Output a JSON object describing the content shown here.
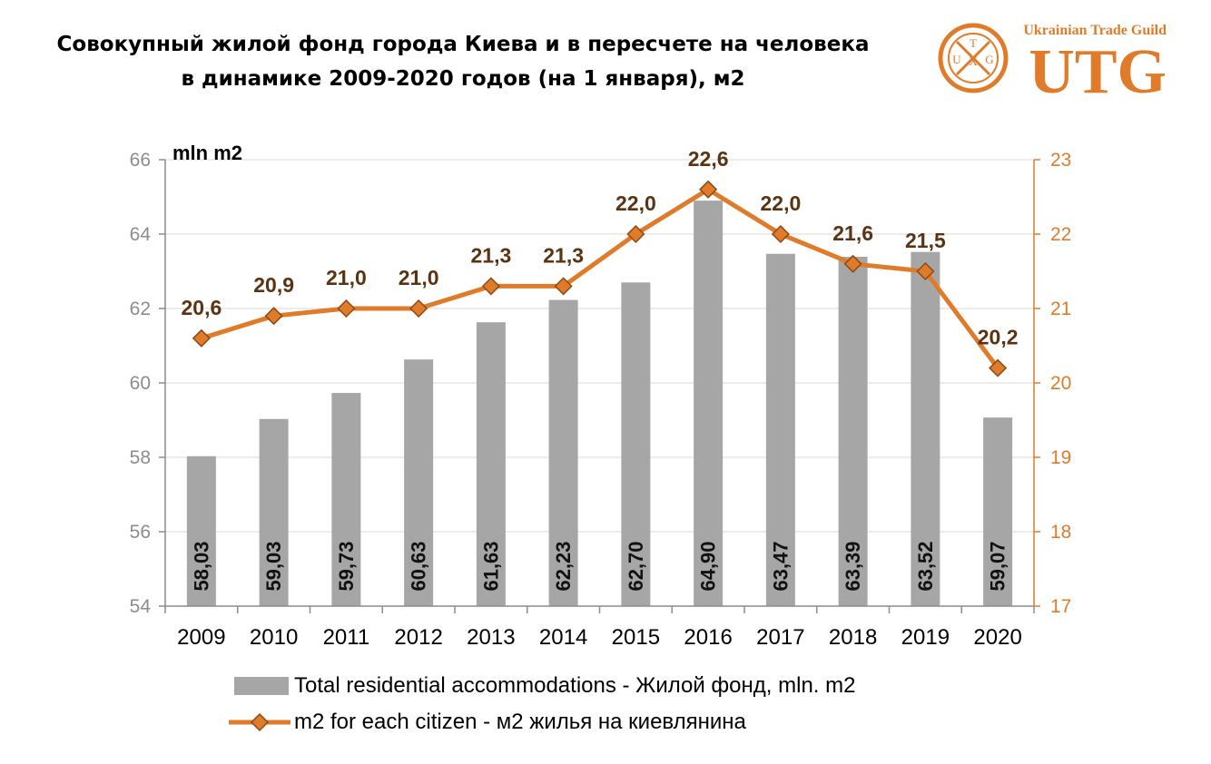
{
  "title": {
    "line1": "Совокупный жилой фонд города Киева и в пересчете на человека",
    "line2": "в динамике 2009-2020 годов (на 1 января), м2"
  },
  "logo": {
    "text_top": "Ukrainian Trade Guild",
    "text_main": "UTG",
    "seal_letters": [
      "U",
      "T",
      "G",
      "X"
    ],
    "color": "#e07b2a"
  },
  "chart_data": {
    "type": "bar",
    "unit_label": "mln m2",
    "categories": [
      "2009",
      "2010",
      "2011",
      "2012",
      "2013",
      "2014",
      "2015",
      "2016",
      "2017",
      "2018",
      "2019",
      "2020"
    ],
    "series": [
      {
        "name": "Total residential accommodations - Жилой фонд, mln. m2",
        "type": "bar",
        "axis": "left",
        "color": "#a6a6a6",
        "values": [
          58.03,
          59.03,
          59.73,
          60.63,
          61.63,
          62.23,
          62.7,
          64.9,
          63.47,
          63.39,
          63.52,
          59.07
        ],
        "labels": [
          "58,03",
          "59,03",
          "59,73",
          "60,63",
          "61,63",
          "62,23",
          "62,70",
          "64,90",
          "63,47",
          "63,39",
          "63,52",
          "59,07"
        ]
      },
      {
        "name": "m2 for each citizen - м2 жилья на киевлянина",
        "type": "line",
        "axis": "right",
        "color": "#e07b2a",
        "values": [
          20.6,
          20.9,
          21.0,
          21.0,
          21.3,
          21.3,
          22.0,
          22.6,
          22.0,
          21.6,
          21.5,
          20.2
        ],
        "labels": [
          "20,6",
          "20,9",
          "21,0",
          "21,0",
          "21,3",
          "21,3",
          "22,0",
          "22,6",
          "22,0",
          "21,6",
          "21,5",
          "20,2"
        ]
      }
    ],
    "y_left": {
      "min": 54,
      "max": 66,
      "ticks": [
        54,
        56,
        58,
        60,
        62,
        64,
        66
      ]
    },
    "y_right": {
      "min": 17,
      "max": 23,
      "ticks": [
        17,
        18,
        19,
        20,
        21,
        22,
        23
      ]
    },
    "grid": true,
    "legend_position": "bottom"
  }
}
